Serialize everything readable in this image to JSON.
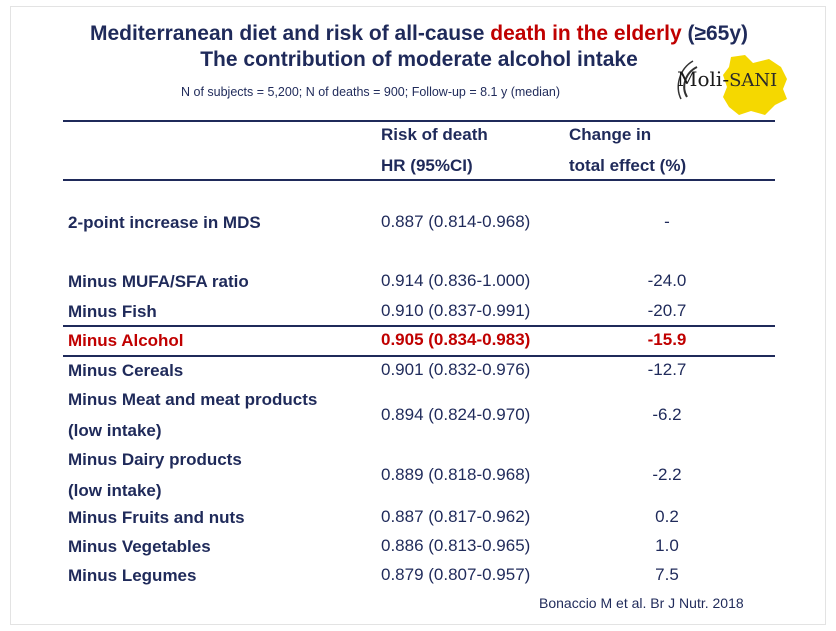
{
  "title": {
    "line1_part1": "Mediterranean diet and risk of all-cause ",
    "line1_highlight": "death in the elderly",
    "line1_part2": " (≥65y)",
    "line2": "The contribution of moderate alcohol intake"
  },
  "meta": "N of subjects = 5,200; N of deaths = 900; Follow-up = 8.1 y (median)",
  "logo": {
    "part1": "Moli-",
    "part2": "SANI"
  },
  "columns": {
    "risk_line1": "Risk of death",
    "risk_line2": "HR (95%CI)",
    "change_line1": "Change in",
    "change_line2": "total effect (%)"
  },
  "rows": [
    {
      "label": "2-point increase in MDS",
      "hr": "0.887 (0.814-0.968)",
      "change": "-"
    },
    {
      "label": "Minus MUFA/SFA ratio",
      "hr": "0.914 (0.836-1.000)",
      "change": "-24.0"
    },
    {
      "label": "Minus Fish",
      "hr": "0.910 (0.837-0.991)",
      "change": "-20.7"
    },
    {
      "label": "Minus Alcohol",
      "hr": "0.905 (0.834-0.983)",
      "change": "-15.9",
      "highlight": true
    },
    {
      "label": "Minus Cereals",
      "hr": "0.901 (0.832-0.976)",
      "change": "-12.7"
    },
    {
      "label_line1": "Minus Meat and meat products",
      "label_line2": "(low intake)",
      "hr": "0.894 (0.824-0.970)",
      "change": "-6.2"
    },
    {
      "label_line1": "Minus Dairy products",
      "label_line2": "(low intake)",
      "hr": "0.889 (0.818-0.968)",
      "change": "-2.2"
    },
    {
      "label": "Minus Fruits and nuts",
      "hr": "0.887 (0.817-0.962)",
      "change": "0.2"
    },
    {
      "label": "Minus Vegetables",
      "hr": "0.886 (0.813-0.965)",
      "change": "1.0"
    },
    {
      "label": "Minus Legumes",
      "hr": "0.879 (0.807-0.957)",
      "change": "7.5"
    }
  ],
  "citation": "Bonaccio M et al. Br J Nutr. 2018",
  "colors": {
    "navy": "#1f2a5a",
    "red": "#c00000",
    "logo_yellow": "#f5d800"
  }
}
